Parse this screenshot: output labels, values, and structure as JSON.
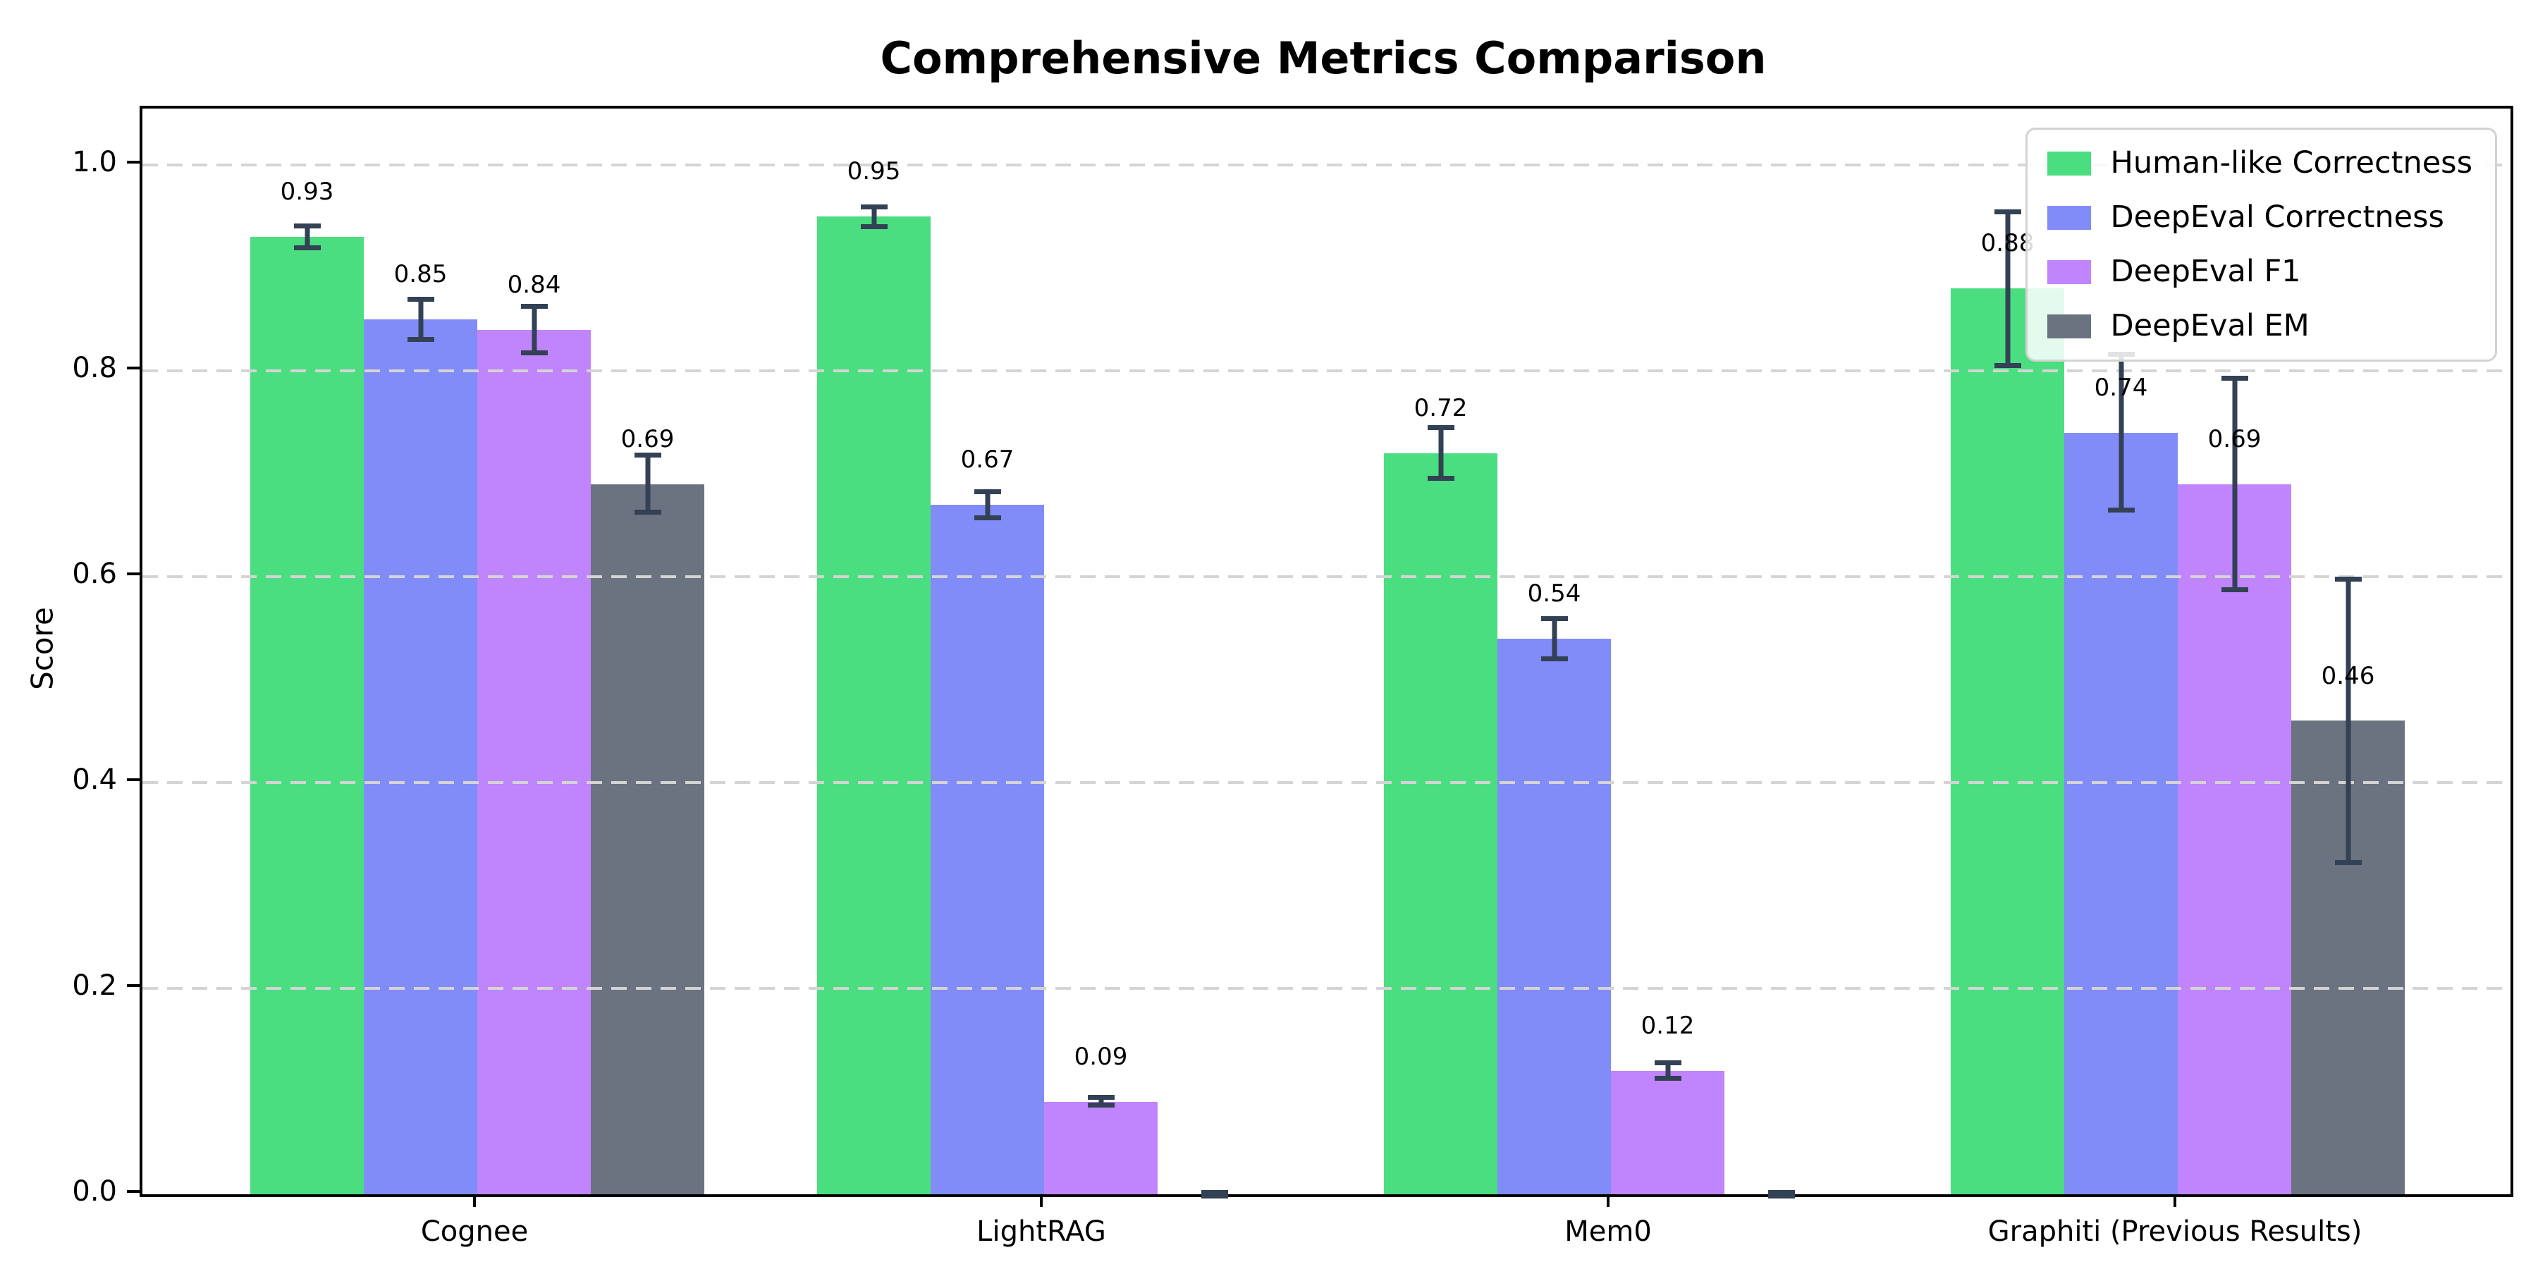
{
  "title": "Comprehensive Metrics Comparison",
  "ylabel": "Score",
  "chart_data": {
    "type": "bar",
    "categories": [
      "Cognee",
      "LightRAG",
      "Mem0",
      "Graphiti (Previous Results)"
    ],
    "series": [
      {
        "name": "Human-like Correctness",
        "color": "#4ade80",
        "values": [
          0.93,
          0.95,
          0.72,
          0.88
        ],
        "errors": [
          0.013,
          0.012,
          0.027,
          0.077
        ],
        "value_labels": [
          "0.93",
          "0.95",
          "0.72",
          "0.88"
        ]
      },
      {
        "name": "DeepEval Correctness",
        "color": "#818cf8",
        "values": [
          0.85,
          0.67,
          0.54,
          0.74
        ],
        "errors": [
          0.022,
          0.015,
          0.022,
          0.078
        ],
        "value_labels": [
          "0.85",
          "0.67",
          "0.54",
          "0.74"
        ]
      },
      {
        "name": "DeepEval F1",
        "color": "#c084fc",
        "values": [
          0.84,
          0.09,
          0.12,
          0.69
        ],
        "errors": [
          0.025,
          0.006,
          0.01,
          0.105
        ],
        "value_labels": [
          "0.84",
          "0.09",
          "0.12",
          "0.69"
        ]
      },
      {
        "name": "DeepEval EM",
        "color": "#6b7280",
        "values": [
          0.69,
          0.0,
          0.0,
          0.46
        ],
        "errors": [
          0.03,
          0.004,
          0.004,
          0.14
        ],
        "value_labels": [
          "0.69",
          "",
          "",
          "0.46"
        ]
      }
    ],
    "ylabel": "Score",
    "xlabel": "",
    "ylim": [
      0.0,
      1.055
    ],
    "yticks": [
      0.0,
      0.2,
      0.4,
      0.6,
      0.8,
      1.0
    ],
    "ytick_labels": [
      "0.0",
      "0.2",
      "0.4",
      "0.6",
      "0.8",
      "1.0"
    ],
    "grid": "horizontal-dashed",
    "legend_position": "upper-right",
    "errorbar_color": "#334155"
  }
}
